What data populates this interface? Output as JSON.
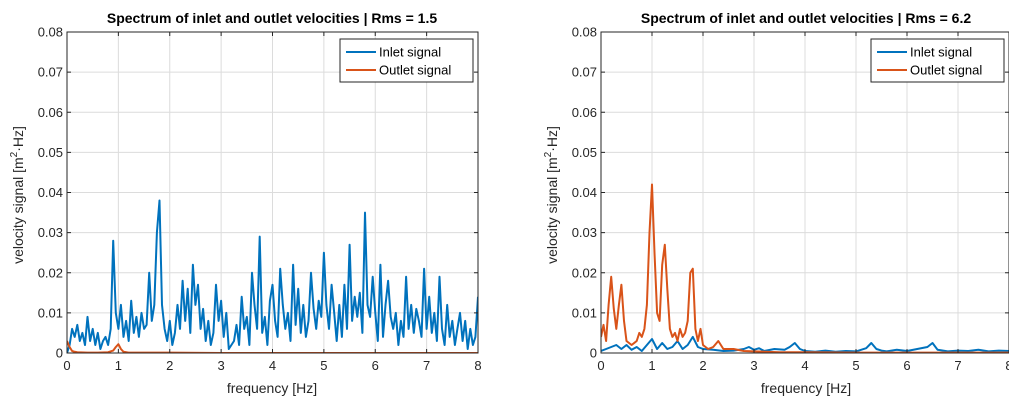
{
  "figure": {
    "background": "#ffffff"
  },
  "chart_data": [
    {
      "type": "line",
      "title": "Spectrum of inlet and outlet velocities | Rms = 1.5",
      "xlabel": "frequency [Hz]",
      "ylabel": "velocity signal [m²·Hz]",
      "ylabel_parts": [
        "velocity signal [m",
        "2",
        "·Hz]"
      ],
      "xlim": [
        0,
        8
      ],
      "ylim": [
        0,
        0.08
      ],
      "xticks": [
        0,
        1,
        2,
        3,
        4,
        5,
        6,
        7,
        8
      ],
      "yticks": [
        0,
        0.01,
        0.02,
        0.03,
        0.04,
        0.05,
        0.06,
        0.07,
        0.08
      ],
      "xtick_labels": [
        "0",
        "1",
        "2",
        "3",
        "4",
        "5",
        "6",
        "7",
        "8"
      ],
      "ytick_labels": [
        "0",
        "0.01",
        "0.02",
        "0.03",
        "0.04",
        "0.05",
        "0.06",
        "0.07",
        "0.08"
      ],
      "grid": true,
      "legend_position": "top-right",
      "series": [
        {
          "name": "Inlet signal",
          "color": "#0072BD",
          "x": [
            0,
            0.05,
            0.1,
            0.15,
            0.2,
            0.25,
            0.3,
            0.35,
            0.4,
            0.45,
            0.5,
            0.55,
            0.6,
            0.65,
            0.7,
            0.75,
            0.8,
            0.85,
            0.9,
            0.95,
            1.0,
            1.05,
            1.1,
            1.15,
            1.2,
            1.25,
            1.3,
            1.35,
            1.4,
            1.45,
            1.5,
            1.55,
            1.6,
            1.65,
            1.7,
            1.75,
            1.8,
            1.85,
            1.9,
            1.95,
            2.0,
            2.05,
            2.1,
            2.15,
            2.2,
            2.25,
            2.3,
            2.35,
            2.4,
            2.45,
            2.5,
            2.55,
            2.6,
            2.65,
            2.7,
            2.75,
            2.8,
            2.85,
            2.9,
            2.95,
            3.0,
            3.05,
            3.1,
            3.15,
            3.2,
            3.25,
            3.3,
            3.35,
            3.4,
            3.45,
            3.5,
            3.55,
            3.6,
            3.65,
            3.7,
            3.75,
            3.8,
            3.85,
            3.9,
            3.95,
            4.0,
            4.05,
            4.1,
            4.15,
            4.2,
            4.25,
            4.3,
            4.35,
            4.4,
            4.45,
            4.5,
            4.55,
            4.6,
            4.65,
            4.7,
            4.75,
            4.8,
            4.85,
            4.9,
            4.95,
            5.0,
            5.05,
            5.1,
            5.15,
            5.2,
            5.25,
            5.3,
            5.35,
            5.4,
            5.45,
            5.5,
            5.55,
            5.6,
            5.65,
            5.7,
            5.75,
            5.8,
            5.85,
            5.9,
            5.95,
            6.0,
            6.05,
            6.1,
            6.15,
            6.2,
            6.25,
            6.3,
            6.35,
            6.4,
            6.45,
            6.5,
            6.55,
            6.6,
            6.65,
            6.7,
            6.75,
            6.8,
            6.85,
            6.9,
            6.95,
            7.0,
            7.05,
            7.1,
            7.15,
            7.2,
            7.25,
            7.3,
            7.35,
            7.4,
            7.45,
            7.5,
            7.55,
            7.6,
            7.65,
            7.7,
            7.75,
            7.8,
            7.85,
            7.9,
            7.95,
            8.0
          ],
          "values": [
            0.0,
            0.002,
            0.006,
            0.004,
            0.007,
            0.003,
            0.005,
            0.002,
            0.009,
            0.003,
            0.006,
            0.002,
            0.005,
            0.001,
            0.003,
            0.004,
            0.002,
            0.006,
            0.028,
            0.01,
            0.006,
            0.012,
            0.004,
            0.008,
            0.003,
            0.013,
            0.005,
            0.009,
            0.004,
            0.01,
            0.006,
            0.007,
            0.02,
            0.008,
            0.012,
            0.03,
            0.038,
            0.012,
            0.006,
            0.003,
            0.008,
            0.002,
            0.005,
            0.012,
            0.006,
            0.018,
            0.008,
            0.016,
            0.005,
            0.022,
            0.012,
            0.017,
            0.006,
            0.011,
            0.003,
            0.008,
            0.002,
            0.005,
            0.017,
            0.008,
            0.013,
            0.004,
            0.01,
            0.001,
            0.002,
            0.003,
            0.007,
            0.002,
            0.014,
            0.006,
            0.009,
            0.002,
            0.02,
            0.012,
            0.006,
            0.029,
            0.005,
            0.009,
            0.002,
            0.013,
            0.017,
            0.008,
            0.004,
            0.021,
            0.012,
            0.006,
            0.01,
            0.003,
            0.022,
            0.007,
            0.016,
            0.005,
            0.012,
            0.004,
            0.008,
            0.02,
            0.011,
            0.006,
            0.013,
            0.009,
            0.025,
            0.012,
            0.006,
            0.017,
            0.01,
            0.003,
            0.012,
            0.004,
            0.017,
            0.006,
            0.027,
            0.008,
            0.014,
            0.009,
            0.015,
            0.005,
            0.035,
            0.012,
            0.009,
            0.019,
            0.01,
            0.003,
            0.022,
            0.004,
            0.012,
            0.018,
            0.009,
            0.006,
            0.01,
            0.002,
            0.008,
            0.004,
            0.019,
            0.006,
            0.012,
            0.005,
            0.011,
            0.008,
            0.004,
            0.021,
            0.006,
            0.014,
            0.005,
            0.01,
            0.003,
            0.019,
            0.006,
            0.002,
            0.012,
            0.004,
            0.008,
            0.002,
            0.006,
            0.01,
            0.003,
            0.008,
            0.001,
            0.006,
            0.002,
            0.004,
            0.014
          ]
        },
        {
          "name": "Outlet signal",
          "color": "#D95319",
          "x": [
            0,
            0.05,
            0.1,
            0.15,
            0.2,
            0.4,
            0.6,
            0.8,
            0.9,
            0.95,
            1.0,
            1.05,
            1.1,
            1.2,
            1.5,
            2.0,
            3.0,
            4.0,
            5.0,
            6.0,
            7.0,
            8.0
          ],
          "values": [
            0.003,
            0.0015,
            0.0005,
            0.0003,
            0.0002,
            0.0001,
            0.0001,
            0.0002,
            0.0006,
            0.0015,
            0.0022,
            0.001,
            0.0003,
            0.0001,
            0.0001,
            0.0001,
            0.0,
            0.0,
            0.0,
            0.0,
            0.0,
            0.0
          ]
        }
      ]
    },
    {
      "type": "line",
      "title": "Spectrum of inlet and outlet velocities | Rms = 6.2",
      "xlabel": "frequency [Hz]",
      "ylabel": "velocity signal [m²·Hz]",
      "ylabel_parts": [
        "velocity signal [m",
        "2",
        "·Hz]"
      ],
      "xlim": [
        0,
        8
      ],
      "ylim": [
        0,
        0.08
      ],
      "xticks": [
        0,
        1,
        2,
        3,
        4,
        5,
        6,
        7,
        8
      ],
      "yticks": [
        0,
        0.01,
        0.02,
        0.03,
        0.04,
        0.05,
        0.06,
        0.07,
        0.08
      ],
      "xtick_labels": [
        "0",
        "1",
        "2",
        "3",
        "4",
        "5",
        "6",
        "7",
        "8"
      ],
      "ytick_labels": [
        "0",
        "0.01",
        "0.02",
        "0.03",
        "0.04",
        "0.05",
        "0.06",
        "0.07",
        "0.08"
      ],
      "grid": true,
      "legend_position": "top-right",
      "series": [
        {
          "name": "Inlet signal",
          "color": "#0072BD",
          "x": [
            0,
            0.1,
            0.2,
            0.3,
            0.4,
            0.5,
            0.6,
            0.7,
            0.8,
            0.9,
            1.0,
            1.1,
            1.2,
            1.3,
            1.4,
            1.5,
            1.6,
            1.7,
            1.8,
            1.9,
            2.0,
            2.2,
            2.4,
            2.6,
            2.8,
            2.9,
            3.0,
            3.1,
            3.2,
            3.4,
            3.6,
            3.7,
            3.8,
            3.9,
            4.0,
            4.2,
            4.4,
            4.6,
            4.8,
            5.0,
            5.2,
            5.3,
            5.4,
            5.5,
            5.6,
            5.8,
            6.0,
            6.2,
            6.4,
            6.5,
            6.6,
            6.8,
            7.0,
            7.2,
            7.4,
            7.6,
            7.8,
            8.0
          ],
          "values": [
            0.0005,
            0.001,
            0.0015,
            0.002,
            0.001,
            0.002,
            0.0008,
            0.0015,
            0.0005,
            0.002,
            0.0035,
            0.001,
            0.0025,
            0.001,
            0.0015,
            0.003,
            0.001,
            0.002,
            0.004,
            0.0015,
            0.001,
            0.0008,
            0.0005,
            0.0006,
            0.001,
            0.0015,
            0.0008,
            0.0012,
            0.0005,
            0.001,
            0.0008,
            0.0015,
            0.0025,
            0.001,
            0.0005,
            0.0003,
            0.0006,
            0.0003,
            0.0005,
            0.0004,
            0.0012,
            0.0025,
            0.001,
            0.0006,
            0.0004,
            0.0008,
            0.0005,
            0.001,
            0.0015,
            0.0025,
            0.0008,
            0.0004,
            0.0006,
            0.0005,
            0.0008,
            0.0004,
            0.0006,
            0.0005
          ]
        },
        {
          "name": "Outlet signal",
          "color": "#D95319",
          "x": [
            0,
            0.05,
            0.1,
            0.15,
            0.2,
            0.25,
            0.3,
            0.35,
            0.4,
            0.45,
            0.5,
            0.6,
            0.7,
            0.75,
            0.8,
            0.85,
            0.9,
            0.95,
            1.0,
            1.05,
            1.1,
            1.15,
            1.2,
            1.25,
            1.3,
            1.35,
            1.4,
            1.45,
            1.5,
            1.55,
            1.6,
            1.65,
            1.7,
            1.75,
            1.8,
            1.85,
            1.9,
            1.95,
            2.0,
            2.1,
            2.2,
            2.3,
            2.4,
            2.6,
            2.8,
            3.0,
            3.5,
            4.0,
            5.0,
            6.0,
            7.0,
            8.0
          ],
          "values": [
            0.004,
            0.007,
            0.003,
            0.012,
            0.019,
            0.011,
            0.006,
            0.012,
            0.017,
            0.008,
            0.003,
            0.002,
            0.003,
            0.005,
            0.004,
            0.006,
            0.012,
            0.03,
            0.042,
            0.025,
            0.01,
            0.008,
            0.022,
            0.027,
            0.016,
            0.006,
            0.004,
            0.005,
            0.003,
            0.006,
            0.004,
            0.005,
            0.008,
            0.02,
            0.021,
            0.006,
            0.003,
            0.006,
            0.002,
            0.001,
            0.0015,
            0.003,
            0.001,
            0.001,
            0.0005,
            0.0004,
            0.0002,
            0.0002,
            0.0001,
            0.0001,
            0.0001,
            0.0001
          ]
        }
      ]
    }
  ]
}
